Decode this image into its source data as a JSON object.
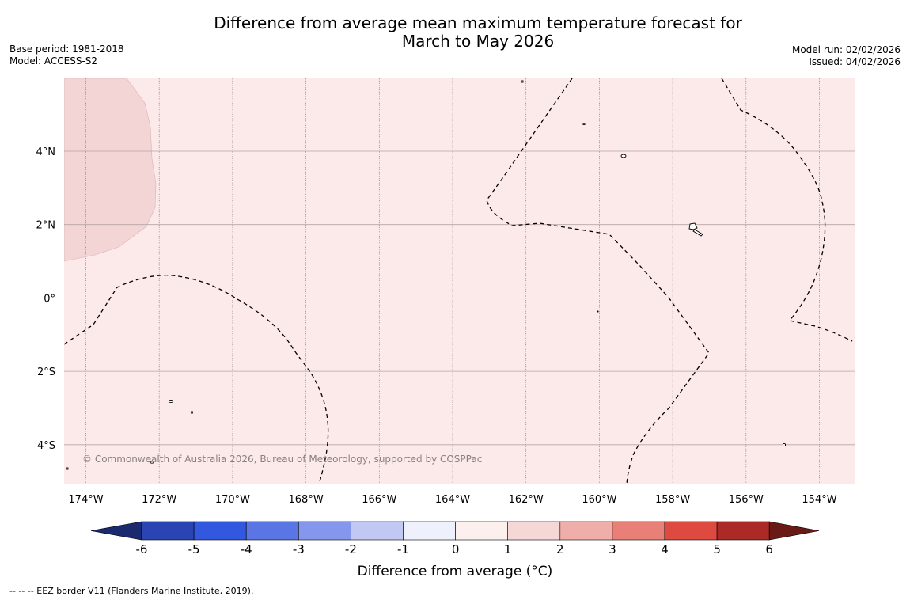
{
  "title": {
    "line1": "Difference from average mean maximum temperature forecast for",
    "line2": "March to May 2026"
  },
  "base_period": "Base period: 1981-2018",
  "model": "Model: ACCESS-S2",
  "model_run": "Model run: 02/02/2026",
  "issued": "Issued: 04/02/2026",
  "copyright": "© Commonwealth of Australia 2026, Bureau of Meteorology, supported by COSPPac",
  "footer": "--  --  -- EEZ border V11 (Flanders Marine Institute, 2019).",
  "map": {
    "lon_labels": [
      "174°W",
      "172°W",
      "170°W",
      "168°W",
      "166°W",
      "164°W",
      "162°W",
      "160°W",
      "158°W",
      "156°W",
      "154°W"
    ],
    "lat_labels": [
      "4°N",
      "2°N",
      "0°",
      "2°S",
      "4°S"
    ]
  },
  "colorbar": {
    "label": "Difference from average (°C)",
    "ticks": [
      "-6",
      "-5",
      "-4",
      "-3",
      "-2",
      "-1",
      "0",
      "1",
      "2",
      "3",
      "4",
      "5",
      "6"
    ],
    "colors": {
      "below_min": "#1b2a6e",
      "bins": [
        "#2a44b4",
        "#3258e0",
        "#5a76e4",
        "#8597ec",
        "#c2c8f4",
        "#eef0fc",
        "#fcf0ee",
        "#f5d8d6",
        "#efaeaa",
        "#e88078",
        "#de4a40",
        "#ac2a26"
      ],
      "above_max": "#6a1a16"
    }
  },
  "colors": {
    "background_anomaly": "#fbeae9",
    "warmer_region": "#f2d5d4"
  }
}
